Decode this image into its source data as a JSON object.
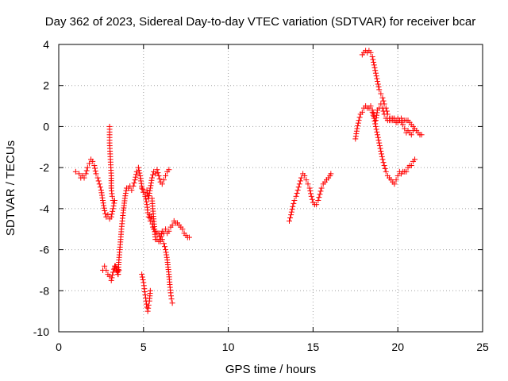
{
  "chart_data": {
    "type": "scatter",
    "title": "Day 362 of 2023, Sidereal Day-to-day VTEC variation (SDTVAR) for receiver bcar",
    "xlabel": "GPS time / hours",
    "ylabel": "SDTVAR / TECUs",
    "xlim": [
      0,
      25
    ],
    "ylim": [
      -10,
      4
    ],
    "xticks": [
      0,
      5,
      10,
      15,
      20,
      25
    ],
    "yticks": [
      -10,
      -8,
      -6,
      -4,
      -2,
      0,
      2,
      4
    ],
    "xtick_labels": [
      "0",
      "5",
      "10",
      "15",
      "20",
      "25"
    ],
    "ytick_labels": [
      "-10",
      "-8",
      "-6",
      "-4",
      "-2",
      "0",
      "2",
      "4"
    ],
    "grid": true,
    "marker": "+",
    "color": "#ff0000",
    "series": [
      {
        "x": [
          1.0,
          1.2,
          1.3,
          1.4,
          1.5,
          1.6,
          1.7,
          1.8,
          1.9,
          2.0,
          2.1,
          2.2,
          2.3,
          2.4,
          2.5,
          2.6,
          2.7,
          2.8,
          2.9,
          3.0,
          3.1,
          3.2,
          3.3
        ],
        "y": [
          -2.2,
          -2.3,
          -2.5,
          -2.4,
          -2.5,
          -2.3,
          -2.0,
          -1.8,
          -1.6,
          -1.7,
          -1.9,
          -2.3,
          -2.5,
          -2.8,
          -3.1,
          -3.6,
          -4.1,
          -4.4,
          -4.3,
          -4.5,
          -4.4,
          -4.0,
          -3.6
        ]
      },
      {
        "x": [
          3.0,
          3.0,
          3.05,
          3.1,
          3.1,
          3.15,
          3.2
        ],
        "y": [
          0.0,
          -0.8,
          -1.6,
          -2.4,
          -3.0,
          -3.4,
          -3.6
        ]
      },
      {
        "x": [
          2.6,
          2.7,
          2.8,
          2.9,
          3.0,
          3.1,
          3.2,
          3.3,
          3.4,
          3.5,
          3.55,
          3.6,
          3.65,
          3.7,
          3.8,
          3.9,
          4.0,
          4.1,
          4.2,
          4.3,
          4.4,
          4.5,
          4.6,
          4.7,
          4.8,
          4.9,
          5.0,
          5.1,
          5.2,
          5.3,
          5.4,
          5.5,
          5.6,
          5.7,
          5.8,
          5.9,
          6.0,
          6.1,
          6.2,
          6.3,
          6.4,
          6.5
        ],
        "y": [
          -7.0,
          -6.8,
          -7.0,
          -7.2,
          -7.3,
          -7.5,
          -7.1,
          -6.8,
          -6.9,
          -7.2,
          -6.5,
          -6.0,
          -5.5,
          -5.0,
          -4.2,
          -3.5,
          -3.0,
          -3.0,
          -2.9,
          -3.1,
          -2.9,
          -2.6,
          -2.2,
          -2.0,
          -2.4,
          -2.9,
          -3.2,
          -3.3,
          -3.1,
          -3.5,
          -3.0,
          -2.5,
          -2.2,
          -2.3,
          -2.1,
          -2.4,
          -2.7,
          -2.8,
          -2.6,
          -2.4,
          -2.2,
          -2.1
        ]
      },
      {
        "x": [
          3.3,
          3.35,
          3.4,
          3.45,
          3.5,
          3.55
        ],
        "y": [
          -6.9,
          -6.8,
          -7.0,
          -7.1,
          -7.2,
          -7.0
        ]
      },
      {
        "x": [
          4.9,
          5.0,
          5.05,
          5.1,
          5.15,
          5.2,
          5.25,
          5.3,
          5.35,
          5.4
        ],
        "y": [
          -7.2,
          -7.6,
          -7.9,
          -8.2,
          -8.5,
          -8.8,
          -9.0,
          -8.7,
          -8.5,
          -8.0
        ]
      },
      {
        "x": [
          4.9,
          5.0,
          5.1,
          5.2,
          5.25,
          5.3,
          5.35,
          5.4,
          5.45,
          5.5,
          5.55,
          5.6,
          5.7,
          5.8,
          5.9,
          6.0,
          6.1,
          6.2,
          6.3,
          6.4,
          6.5,
          6.6,
          6.7,
          6.8,
          6.9,
          7.0,
          7.1,
          7.2,
          7.3,
          7.4,
          7.5,
          7.6,
          7.7
        ],
        "y": [
          -3.0,
          -3.2,
          -3.4,
          -3.8,
          -4.2,
          -4.4,
          -4.3,
          -4.6,
          -4.4,
          -4.6,
          -4.9,
          -5.0,
          -5.1,
          -5.2,
          -5.2,
          -5.5,
          -5.1,
          -5.2,
          -5.0,
          -5.2,
          -5.1,
          -4.9,
          -4.8,
          -4.6,
          -4.7,
          -4.7,
          -4.8,
          -4.9,
          -5.0,
          -5.2,
          -5.3,
          -5.4,
          -5.4
        ]
      },
      {
        "x": [
          5.5,
          5.55,
          5.6,
          5.65,
          5.7,
          5.8,
          5.9,
          6.0,
          6.1,
          6.2,
          6.3,
          6.4,
          6.5,
          6.55,
          6.6,
          6.65,
          6.7
        ],
        "y": [
          -3.5,
          -4.0,
          -4.5,
          -5.0,
          -5.5,
          -5.5,
          -5.6,
          -5.6,
          -5.5,
          -5.7,
          -6.0,
          -6.5,
          -7.2,
          -7.7,
          -8.1,
          -8.4,
          -8.6
        ]
      },
      {
        "x": [
          13.6,
          13.7,
          13.8,
          13.9,
          14.0,
          14.1,
          14.2,
          14.3,
          14.4,
          14.5,
          14.6,
          14.7,
          14.8,
          14.9,
          15.0,
          15.1,
          15.2,
          15.3,
          15.4,
          15.5,
          15.6,
          15.7,
          15.8,
          15.9,
          16.0,
          16.05
        ],
        "y": [
          -4.6,
          -4.3,
          -3.9,
          -3.6,
          -3.4,
          -3.1,
          -2.8,
          -2.5,
          -2.3,
          -2.4,
          -2.6,
          -2.8,
          -3.0,
          -3.4,
          -3.7,
          -3.8,
          -3.8,
          -3.6,
          -3.3,
          -3.0,
          -2.8,
          -2.7,
          -2.6,
          -2.5,
          -2.4,
          -2.3
        ]
      },
      {
        "x": [
          17.5,
          17.6,
          17.7,
          17.8,
          17.9,
          18.0,
          18.1,
          18.2,
          18.3,
          18.4,
          18.5,
          18.6,
          18.7,
          18.8,
          18.9,
          19.0,
          19.1,
          19.2,
          19.3,
          19.4,
          19.5,
          19.6,
          19.7,
          19.8,
          19.9,
          20.0,
          20.1,
          20.2,
          20.3,
          20.4,
          20.5,
          20.6,
          20.7,
          20.8,
          20.9,
          21.0,
          21.1,
          21.2,
          21.3,
          21.4
        ],
        "y": [
          -0.6,
          -0.1,
          0.3,
          0.6,
          0.7,
          0.9,
          1.0,
          0.9,
          0.9,
          1.0,
          0.8,
          0.5,
          0.3,
          0.8,
          0.9,
          1.1,
          0.9,
          0.6,
          0.4,
          0.3,
          0.3,
          0.4,
          0.3,
          0.4,
          0.3,
          0.4,
          0.3,
          0.2,
          0.1,
          -0.1,
          -0.3,
          -0.2,
          -0.3,
          -0.4,
          -0.2,
          -0.1,
          -0.2,
          -0.3,
          -0.4,
          -0.4
        ]
      },
      {
        "x": [
          17.9,
          18.0,
          18.1,
          18.2,
          18.3,
          18.4,
          18.5,
          18.6,
          18.7,
          18.8,
          18.9,
          19.0,
          19.1,
          19.2,
          19.3,
          19.4,
          19.5,
          19.6,
          19.7,
          19.8,
          19.9,
          20.0,
          20.1,
          20.2,
          20.3,
          20.4,
          20.5,
          20.6,
          20.7,
          20.8,
          20.9
        ],
        "y": [
          3.5,
          3.6,
          3.7,
          3.6,
          3.7,
          3.6,
          3.4,
          3.0,
          2.6,
          2.2,
          1.8,
          1.6,
          1.4,
          1.1,
          0.9,
          0.6,
          0.4,
          0.3,
          0.4,
          0.3,
          0.2,
          0.2,
          0.3,
          0.4,
          0.3,
          0.3,
          0.3,
          0.3,
          0.2,
          0.1,
          0.0
        ]
      },
      {
        "x": [
          18.5,
          18.6,
          18.7,
          18.8,
          18.9,
          19.0,
          19.1,
          19.2,
          19.3,
          19.4,
          19.5,
          19.6,
          19.7,
          19.8,
          19.9,
          20.0,
          20.1,
          20.2,
          20.3,
          20.4,
          20.5,
          20.6,
          20.7,
          20.8,
          20.9,
          21.0
        ],
        "y": [
          0.7,
          0.4,
          0.0,
          -0.4,
          -0.8,
          -1.2,
          -1.6,
          -1.9,
          -2.2,
          -2.4,
          -2.5,
          -2.6,
          -2.7,
          -2.8,
          -2.6,
          -2.4,
          -2.2,
          -2.3,
          -2.2,
          -2.2,
          -2.2,
          -2.0,
          -1.9,
          -1.9,
          -1.7,
          -1.6
        ]
      }
    ]
  }
}
